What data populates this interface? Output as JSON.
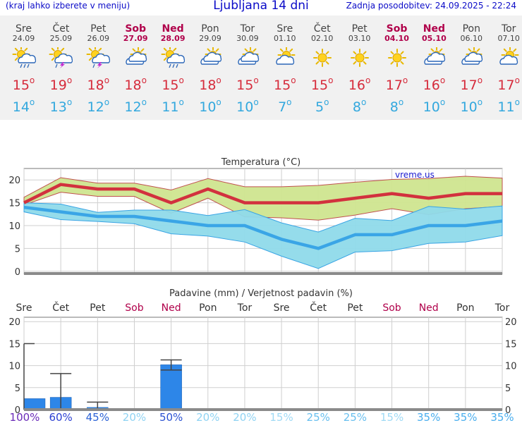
{
  "header": {
    "menu_hint": "(kraj lahko izberete v meniju)",
    "title": "Ljubljana 14 dni",
    "updated": "Zadnja posodobitev: 24.09.2025 - 22:24"
  },
  "days": [
    {
      "day": "Sre",
      "date": "24.09",
      "weekend": false,
      "icon": "sun-cloud-rain-icon",
      "tmax": "15",
      "tmin": "14"
    },
    {
      "day": "Čet",
      "date": "25.09",
      "weekend": false,
      "icon": "sun-cloud-storm-icon",
      "tmax": "19",
      "tmin": "13"
    },
    {
      "day": "Pet",
      "date": "26.09",
      "weekend": false,
      "icon": "sun-cloud-storm-icon",
      "tmax": "18",
      "tmin": "12"
    },
    {
      "day": "Sob",
      "date": "27.09",
      "weekend": true,
      "icon": "cloudy-icon",
      "tmax": "18",
      "tmin": "12"
    },
    {
      "day": "Ned",
      "date": "28.09",
      "weekend": true,
      "icon": "sun-cloud-rain-icon",
      "tmax": "15",
      "tmin": "11"
    },
    {
      "day": "Pon",
      "date": "29.09",
      "weekend": false,
      "icon": "cloudy-icon",
      "tmax": "18",
      "tmin": "10"
    },
    {
      "day": "Tor",
      "date": "30.09",
      "weekend": false,
      "icon": "cloudy-icon",
      "tmax": "15",
      "tmin": "10"
    },
    {
      "day": "Sre",
      "date": "01.10",
      "weekend": false,
      "icon": "partly-sunny-icon",
      "tmax": "15",
      "tmin": "7"
    },
    {
      "day": "Čet",
      "date": "02.10",
      "weekend": false,
      "icon": "sun-icon",
      "tmax": "15",
      "tmin": "5"
    },
    {
      "day": "Pet",
      "date": "03.10",
      "weekend": false,
      "icon": "sun-icon",
      "tmax": "16",
      "tmin": "8"
    },
    {
      "day": "Sob",
      "date": "04.10",
      "weekend": true,
      "icon": "sun-icon",
      "tmax": "17",
      "tmin": "8"
    },
    {
      "day": "Ned",
      "date": "05.10",
      "weekend": true,
      "icon": "cloudy-icon",
      "tmax": "16",
      "tmin": "10"
    },
    {
      "day": "Pon",
      "date": "06.10",
      "weekend": false,
      "icon": "cloudy-icon",
      "tmax": "17",
      "tmin": "10"
    },
    {
      "day": "Tor",
      "date": "07.10",
      "weekend": false,
      "icon": "partly-sunny-icon",
      "tmax": "17",
      "tmin": "11"
    }
  ],
  "colors": {
    "max_line": "#d2313e",
    "max_band": "#cfe58f",
    "min_line": "#3aa5e6",
    "min_band": "#8fdaea",
    "precip_bar": "#2d86e8",
    "weekend_text": "#b0004a"
  },
  "chart_data": [
    {
      "type": "line",
      "title": "Temperatura (°C)",
      "watermark": "vreme.us",
      "ylim": [
        -0.5,
        22.5
      ],
      "yticks": [
        "0",
        "5",
        "10",
        "15",
        "20"
      ],
      "x": [
        0,
        1,
        2,
        3,
        4,
        5,
        6,
        7,
        8,
        9,
        10,
        11,
        12,
        13
      ],
      "series": [
        {
          "name": "max",
          "values": [
            15,
            19,
            18,
            18,
            15,
            18,
            15,
            15,
            15,
            16,
            17,
            16,
            17,
            17
          ]
        },
        {
          "name": "max_high",
          "values": [
            16.2,
            20.5,
            19.3,
            19.3,
            17.8,
            20.3,
            18.5,
            18.5,
            18.8,
            19.5,
            20.1,
            20.3,
            20.8,
            20.4
          ]
        },
        {
          "name": "max_low",
          "values": [
            14.5,
            17.3,
            16.4,
            16.4,
            12.7,
            16.0,
            11.9,
            11.7,
            11.2,
            12.3,
            13.7,
            12.4,
            13.7,
            14.2
          ]
        },
        {
          "name": "min",
          "values": [
            14,
            13,
            12,
            12,
            11,
            10,
            10,
            7,
            5,
            8,
            8,
            10,
            10,
            11
          ]
        },
        {
          "name": "min_high",
          "values": [
            15,
            14.7,
            12.9,
            13.4,
            13.4,
            12.2,
            13.5,
            10.6,
            8.6,
            11.6,
            11.1,
            14.2,
            13.6,
            14.3
          ]
        },
        {
          "name": "min_low",
          "values": [
            13,
            11.3,
            10.9,
            10.4,
            8.2,
            7.7,
            6.4,
            3.3,
            0.6,
            4.2,
            4.5,
            6.1,
            6.4,
            7.8
          ]
        }
      ]
    },
    {
      "type": "bar",
      "title": "Padavine (mm) / Verjetnost padavin (%)",
      "categories": [
        "Sre",
        "Čet",
        "Pet",
        "Sob",
        "Ned",
        "Pon",
        "Tor",
        "Sre",
        "Čet",
        "Pet",
        "Sob",
        "Ned",
        "Pon",
        "Tor"
      ],
      "weekend": [
        false,
        false,
        false,
        true,
        true,
        false,
        false,
        false,
        false,
        false,
        true,
        true,
        false,
        false
      ],
      "ylim": [
        0,
        21
      ],
      "yticks": [
        "0",
        "5",
        "10",
        "15",
        "20"
      ],
      "values": [
        2.5,
        2.8,
        0.5,
        0,
        10.2,
        0,
        0,
        0,
        0,
        0,
        0,
        0,
        0,
        0
      ],
      "error_max": [
        15,
        8.2,
        1.7,
        0,
        11.3,
        0,
        0,
        0,
        0,
        0,
        0,
        0,
        0,
        0
      ],
      "error_min": [
        0,
        0,
        0,
        0,
        9,
        0,
        0,
        0,
        0,
        0,
        0,
        0,
        0,
        0
      ],
      "probability": [
        "100%",
        "60%",
        "45%",
        "20%",
        "50%",
        "20%",
        "20%",
        "15%",
        "25%",
        "25%",
        "15%",
        "35%",
        "35%",
        "35%"
      ],
      "probability_colors": [
        "#6a2bb8",
        "#2b3fd2",
        "#2b62d6",
        "#8fd3f3",
        "#2b52d2",
        "#8fd3f3",
        "#8fd3f3",
        "#9fdaf5",
        "#68bfef",
        "#68bfef",
        "#9fdaf5",
        "#4aaeee",
        "#4aaeee",
        "#4aaeee"
      ]
    }
  ]
}
